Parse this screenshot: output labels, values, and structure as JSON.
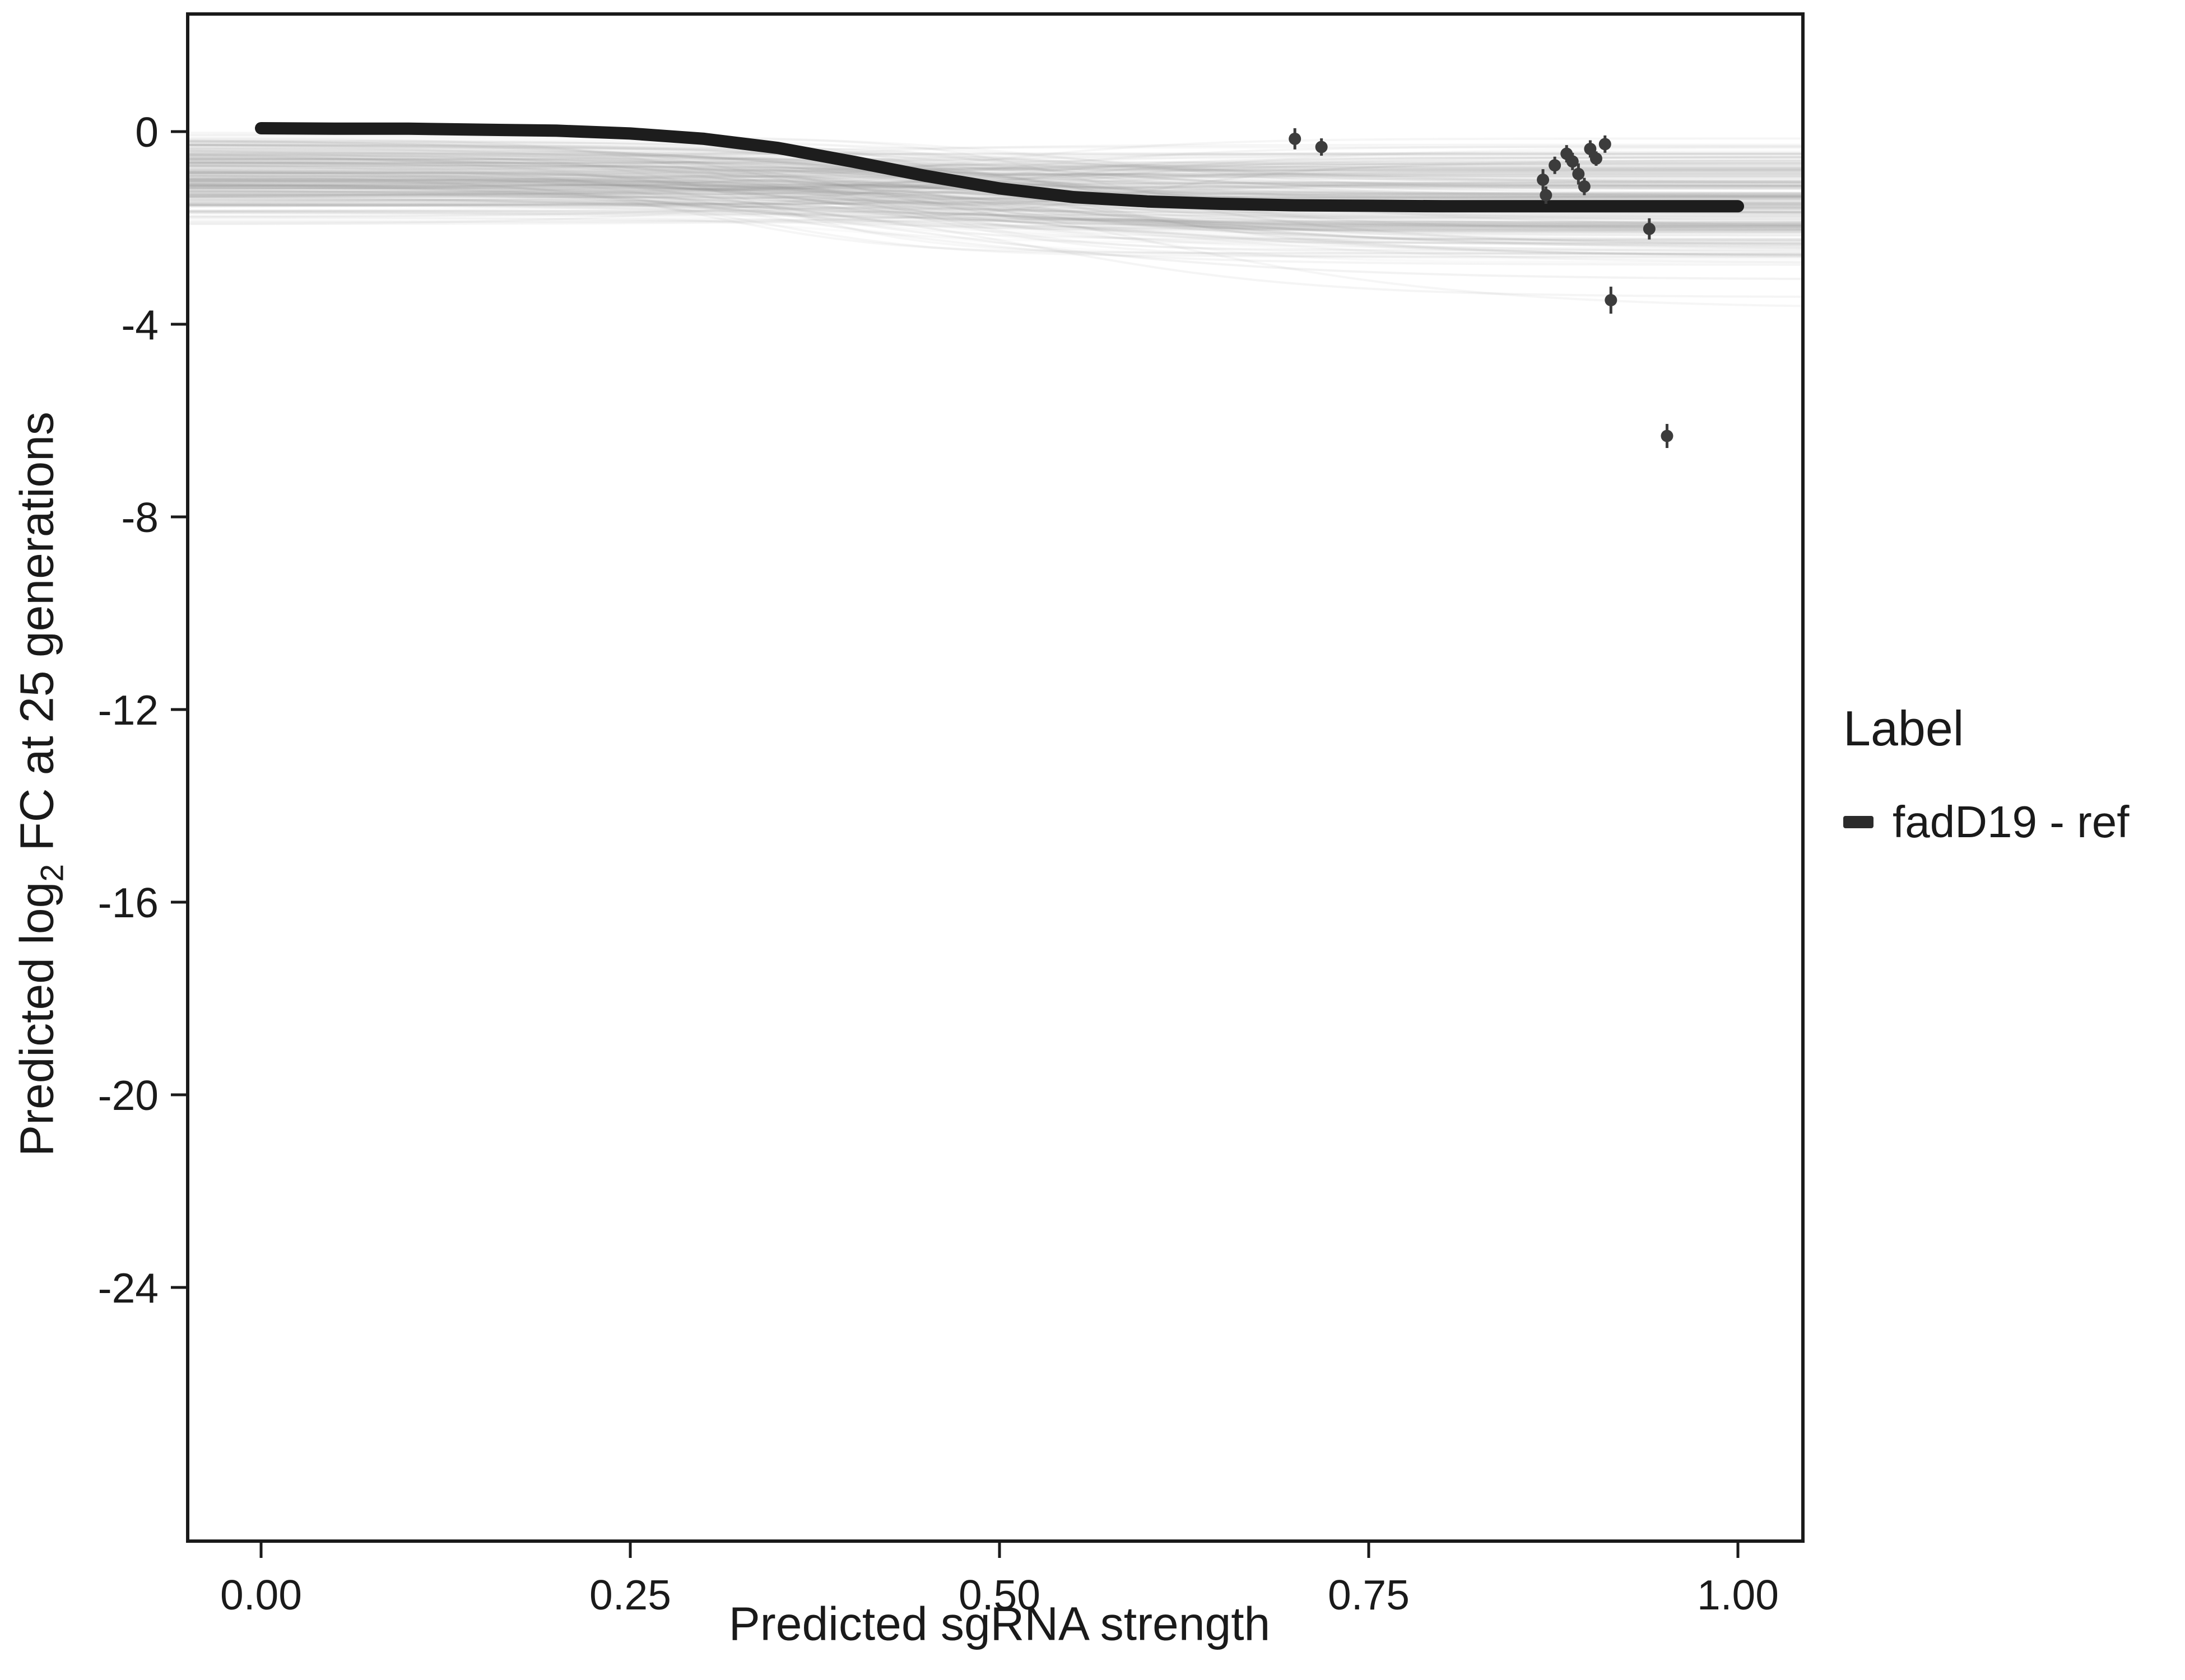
{
  "chart_data": {
    "type": "line",
    "title": "",
    "xlabel": "Predicted sgRNA strength",
    "ylabel": "Predicted log2 FC at 25 generations",
    "ylabel_parts": [
      "Predicted  log",
      "2",
      " FC at 25 generations"
    ],
    "xlim": [
      -0.05,
      1.045
    ],
    "ylim": [
      -29.3,
      2.45
    ],
    "grid": false,
    "background": "#ffffff",
    "panel_border_color": "#1a1a1a",
    "x_ticks": {
      "values": [
        0,
        0.25,
        0.5,
        0.75,
        1.0
      ],
      "labels": [
        "0.00",
        "0.25",
        "0.50",
        "0.75",
        "1.00"
      ]
    },
    "y_ticks": {
      "values": [
        0,
        -4,
        -8,
        -12,
        -16,
        -20,
        -24
      ],
      "labels": [
        "0",
        "-4",
        "-8",
        "-12",
        "-16",
        "-20",
        "-24"
      ]
    },
    "series": [
      {
        "name": "fadD19 - ref",
        "type": "line",
        "color": "#1d1d1d",
        "width": 22,
        "x": [
          0,
          0.05,
          0.1,
          0.15,
          0.2,
          0.25,
          0.3,
          0.35,
          0.4,
          0.45,
          0.5,
          0.55,
          0.6,
          0.65,
          0.7,
          0.75,
          0.8,
          0.85,
          0.9,
          0.95,
          1.0
        ],
        "y": [
          0.07,
          0.06,
          0.06,
          0.04,
          0.02,
          -0.04,
          -0.15,
          -0.34,
          -0.62,
          -0.92,
          -1.18,
          -1.36,
          -1.45,
          -1.5,
          -1.53,
          -1.54,
          -1.55,
          -1.55,
          -1.55,
          -1.55,
          -1.55
        ]
      }
    ],
    "points": {
      "color": "#3c3c3c",
      "note": "observed sgRNA fitness estimates with error bars [x, y, se]",
      "items": [
        [
          0.7,
          -0.15,
          0.22
        ],
        [
          0.718,
          -0.32,
          0.18
        ],
        [
          0.868,
          -1.0,
          0.22
        ],
        [
          0.87,
          -1.32,
          0.18
        ],
        [
          0.876,
          -0.7,
          0.18
        ],
        [
          0.884,
          -0.46,
          0.18
        ],
        [
          0.888,
          -0.62,
          0.18
        ],
        [
          0.892,
          -0.88,
          0.22
        ],
        [
          0.896,
          -1.14,
          0.18
        ],
        [
          0.9,
          -0.36,
          0.18
        ],
        [
          0.904,
          -0.56,
          0.15
        ],
        [
          0.91,
          -0.26,
          0.18
        ],
        [
          0.914,
          -3.5,
          0.28
        ],
        [
          0.94,
          -2.02,
          0.22
        ],
        [
          0.952,
          -6.32,
          0.25
        ]
      ]
    },
    "ensemble": {
      "description": "posterior draw curves forming the gray uncertainty band",
      "count": 240,
      "color": "#8d8d8d",
      "opacity_range": [
        0.04,
        0.11
      ],
      "line_width": 4,
      "y_start_range": [
        -2.0,
        0.12
      ],
      "y_end_range": [
        -2.9,
        -0.05
      ],
      "extra_low_end": -3.7,
      "extra_low_prob": 0.025,
      "midpoint_range": [
        0.3,
        0.6
      ],
      "slope_range": [
        0.05,
        0.13
      ],
      "seed": 7
    },
    "legend": {
      "title": "Label",
      "position": "right",
      "items": [
        {
          "label": "fadD19 - ref",
          "color": "#2b2b2b"
        }
      ]
    }
  }
}
